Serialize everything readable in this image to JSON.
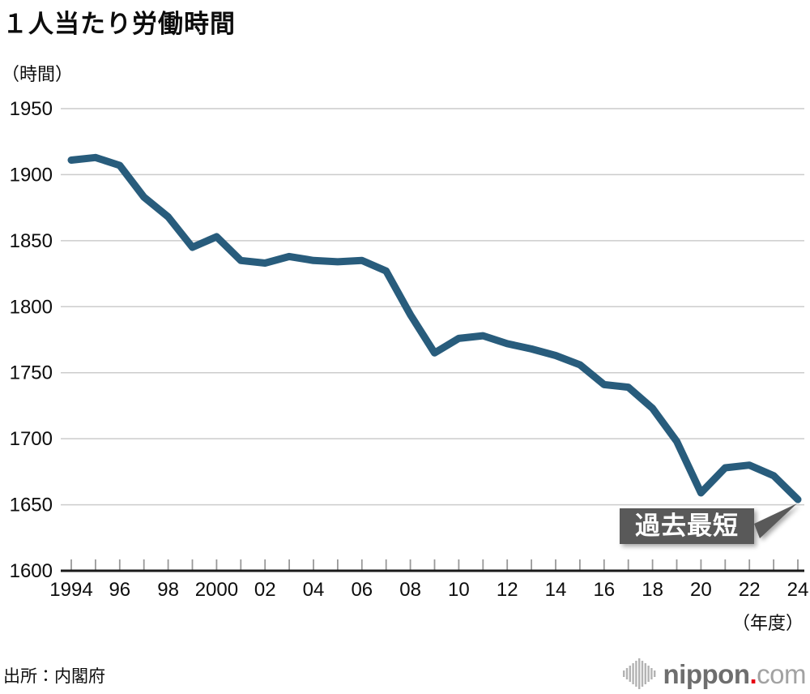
{
  "chart_data": {
    "type": "line",
    "title": "１人当たり労働時間",
    "y_unit": "（時間）",
    "x_unit": "（年度）",
    "x": [
      1994,
      1995,
      1996,
      1997,
      1998,
      1999,
      2000,
      2001,
      2002,
      2003,
      2004,
      2005,
      2006,
      2007,
      2008,
      2009,
      2010,
      2011,
      2012,
      2013,
      2014,
      2015,
      2016,
      2017,
      2018,
      2019,
      2020,
      2021,
      2022,
      2023,
      2024
    ],
    "series": [
      {
        "name": "1人当たり労働時間",
        "values": [
          1911,
          1913,
          1907,
          1883,
          1868,
          1845,
          1853,
          1835,
          1833,
          1838,
          1835,
          1834,
          1835,
          1827,
          1794,
          1765,
          1776,
          1778,
          1772,
          1768,
          1763,
          1756,
          1741,
          1739,
          1723,
          1698,
          1659,
          1678,
          1680,
          1672,
          1654
        ]
      }
    ],
    "ylim": [
      1600,
      1950
    ],
    "yticks": [
      1600,
      1650,
      1700,
      1750,
      1800,
      1850,
      1900,
      1950
    ],
    "x_tick_label_years": [
      1994,
      1996,
      1998,
      2000,
      2002,
      2004,
      2006,
      2008,
      2010,
      2012,
      2014,
      2016,
      2018,
      2020,
      2022,
      2024
    ],
    "x_tick_labels": [
      "1994",
      "96",
      "98",
      "2000",
      "02",
      "04",
      "06",
      "08",
      "10",
      "12",
      "14",
      "16",
      "18",
      "20",
      "22",
      "24"
    ],
    "grid": "horizontal",
    "legend": "none",
    "line_color": "#285c7c",
    "annotation": {
      "label": "過去最短",
      "target_year": 2024,
      "target_value": 1654
    }
  },
  "footer": {
    "source": "出所：内閣府"
  },
  "logo": {
    "brand": "nippon",
    "dot": ".",
    "tld": "com"
  },
  "colors": {
    "line": "#285c7c",
    "gridline": "#cccccc",
    "axis": "#1a1a1a",
    "tick": "#999999",
    "annotation_bg": "#595959",
    "annotation_text": "#ffffff",
    "logo_dot": "#e60012"
  }
}
